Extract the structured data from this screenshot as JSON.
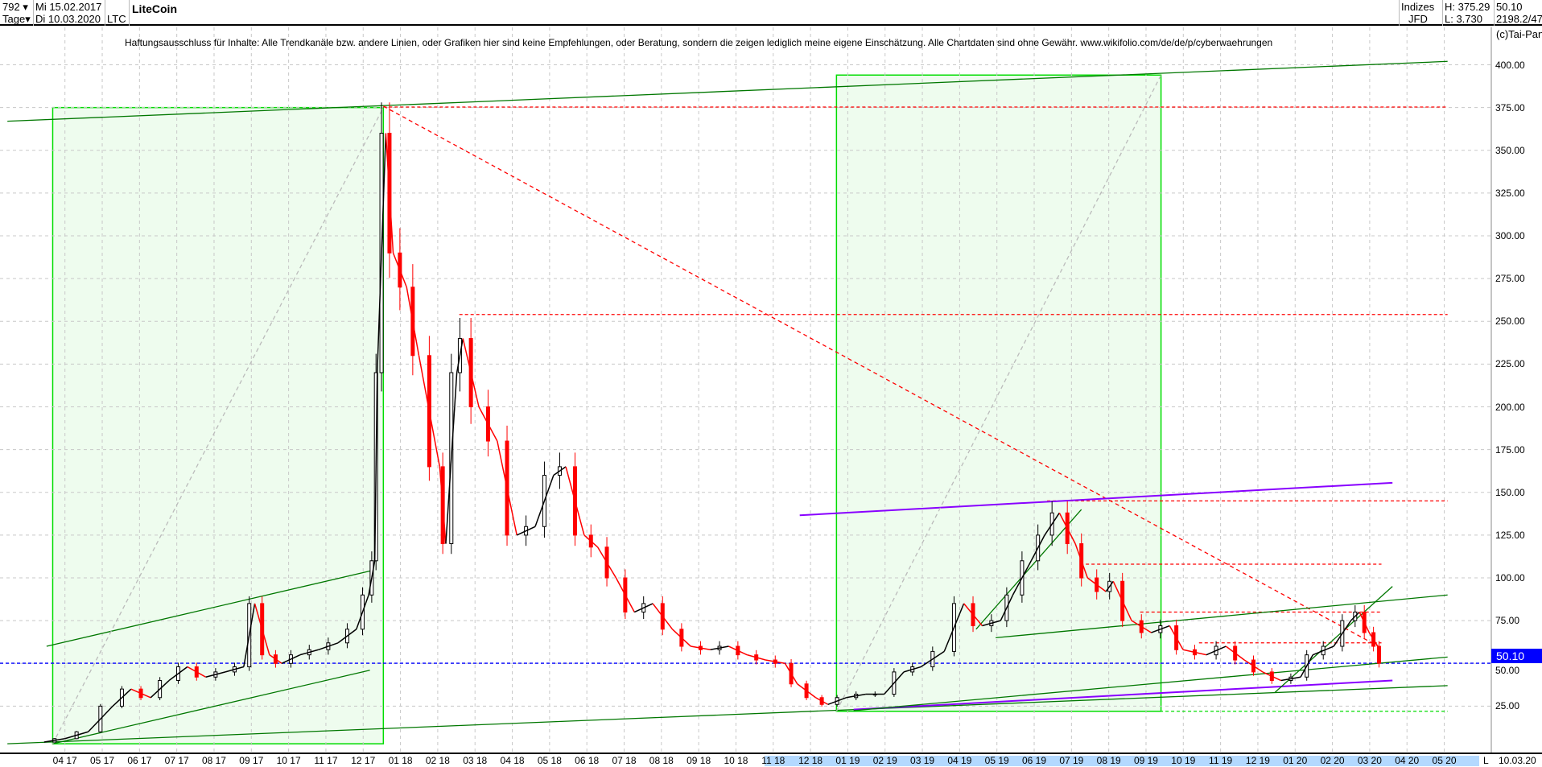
{
  "header": {
    "count": "792",
    "period": "Tage",
    "date_from": "Mi 15.02.2017",
    "date_to": "Di 10.03.2020",
    "symbol": "LTC",
    "title": "LiteCoin",
    "market": "Indizes",
    "exchange": "JFD",
    "high": "H: 375.29",
    "low": "L: 3.730",
    "last": "50.10",
    "extra": "2198.2/47",
    "copyright": "(c)Tai-Pan"
  },
  "disclaimer": "Haftungsausschluss für Inhalte: Alle Trendkanäle bzw. andere Linien, oder Grafiken hier sind keine Empfehlungen, oder Beratung, sondern die zeigen lediglich meine eigene Einschätzung. Alle Chartdaten sind ohne Gewähr.  www.wikifolio.com/de/de/p/cyberwaehrungen",
  "footer": {
    "scale_mode": "L",
    "end_date": "10.03.20"
  },
  "colors": {
    "up": "#000000",
    "down": "#ff0000",
    "box": "#00dd00",
    "box_fill": "#eefcee",
    "trend": "#007700",
    "resistance": "#ff0000",
    "purple": "#8800ff",
    "current": "#0000ff"
  },
  "chart_data": {
    "type": "candlestick",
    "title": "LiteCoin",
    "ylim": [
      3.73,
      410
    ],
    "yticks": [
      "25.00",
      "50.00",
      "75.00",
      "100.00",
      "125.00",
      "150.00",
      "175.00",
      "200.00",
      "225.00",
      "250.00",
      "275.00",
      "300.00",
      "325.00",
      "350.00",
      "375.00",
      "400.00"
    ],
    "xticks": [
      "04 17",
      "05 17",
      "06 17",
      "07 17",
      "08 17",
      "09 17",
      "10 17",
      "11 17",
      "12 17",
      "01 18",
      "02 18",
      "03 18",
      "04 18",
      "05 18",
      "06 18",
      "07 18",
      "08 18",
      "09 18",
      "10 18",
      "11 18",
      "12 18",
      "01 19",
      "02 19",
      "03 19",
      "04 19",
      "05 19",
      "06 19",
      "07 19",
      "08 19",
      "09 19",
      "10 19",
      "11 19",
      "12 19",
      "01 20",
      "02 20",
      "03 20",
      "04 20",
      "05 20"
    ],
    "current_value": "50.10",
    "grid": true,
    "prices": [
      [
        "2017-03-15",
        4
      ],
      [
        "2017-04-01",
        6
      ],
      [
        "2017-04-20",
        10
      ],
      [
        "2017-05-10",
        25
      ],
      [
        "2017-05-25",
        35
      ],
      [
        "2017-06-10",
        30
      ],
      [
        "2017-06-25",
        40
      ],
      [
        "2017-07-10",
        48
      ],
      [
        "2017-07-25",
        42
      ],
      [
        "2017-08-10",
        45
      ],
      [
        "2017-08-25",
        48
      ],
      [
        "2017-09-03",
        85
      ],
      [
        "2017-09-15",
        55
      ],
      [
        "2017-09-25",
        50
      ],
      [
        "2017-10-10",
        55
      ],
      [
        "2017-10-25",
        58
      ],
      [
        "2017-11-10",
        62
      ],
      [
        "2017-11-25",
        70
      ],
      [
        "2017-12-05",
        90
      ],
      [
        "2017-12-10",
        110
      ],
      [
        "2017-12-12",
        220
      ],
      [
        "2017-12-19",
        360
      ],
      [
        "2017-12-25",
        290
      ],
      [
        "2018-01-05",
        270
      ],
      [
        "2018-01-15",
        230
      ],
      [
        "2018-02-01",
        165
      ],
      [
        "2018-02-06",
        120
      ],
      [
        "2018-02-15",
        220
      ],
      [
        "2018-02-20",
        240
      ],
      [
        "2018-03-05",
        200
      ],
      [
        "2018-03-20",
        180
      ],
      [
        "2018-04-05",
        125
      ],
      [
        "2018-04-20",
        130
      ],
      [
        "2018-05-05",
        160
      ],
      [
        "2018-05-15",
        165
      ],
      [
        "2018-05-30",
        125
      ],
      [
        "2018-06-10",
        118
      ],
      [
        "2018-06-25",
        100
      ],
      [
        "2018-07-10",
        80
      ],
      [
        "2018-07-25",
        85
      ],
      [
        "2018-08-10",
        70
      ],
      [
        "2018-08-25",
        60
      ],
      [
        "2018-09-10",
        58
      ],
      [
        "2018-09-25",
        60
      ],
      [
        "2018-10-10",
        55
      ],
      [
        "2018-10-25",
        52
      ],
      [
        "2018-11-10",
        50
      ],
      [
        "2018-11-20",
        38
      ],
      [
        "2018-12-05",
        30
      ],
      [
        "2018-12-15",
        26
      ],
      [
        "2018-12-30",
        30
      ],
      [
        "2019-01-15",
        32
      ],
      [
        "2019-01-30",
        32
      ],
      [
        "2019-02-15",
        45
      ],
      [
        "2019-03-01",
        48
      ],
      [
        "2019-03-20",
        57
      ],
      [
        "2019-04-05",
        85
      ],
      [
        "2019-04-20",
        72
      ],
      [
        "2019-05-05",
        75
      ],
      [
        "2019-05-15",
        90
      ],
      [
        "2019-05-30",
        110
      ],
      [
        "2019-06-10",
        125
      ],
      [
        "2019-06-22",
        138
      ],
      [
        "2019-07-05",
        120
      ],
      [
        "2019-07-15",
        100
      ],
      [
        "2019-07-30",
        92
      ],
      [
        "2019-08-05",
        98
      ],
      [
        "2019-08-20",
        75
      ],
      [
        "2019-09-05",
        68
      ],
      [
        "2019-09-20",
        72
      ],
      [
        "2019-10-01",
        58
      ],
      [
        "2019-10-20",
        55
      ],
      [
        "2019-11-05",
        60
      ],
      [
        "2019-11-20",
        52
      ],
      [
        "2019-12-05",
        45
      ],
      [
        "2019-12-20",
        40
      ],
      [
        "2020-01-05",
        42
      ],
      [
        "2020-01-15",
        55
      ],
      [
        "2020-02-01",
        60
      ],
      [
        "2020-02-15",
        75
      ],
      [
        "2020-02-22",
        80
      ],
      [
        "2020-03-01",
        68
      ],
      [
        "2020-03-08",
        60
      ],
      [
        "2020-03-10",
        50.1
      ]
    ],
    "boxes": [
      {
        "from": "2017-03-22",
        "to": "2017-12-17",
        "low": 3,
        "high": 375
      },
      {
        "from": "2018-12-22",
        "to": "2019-09-13",
        "low": 22,
        "high": 394
      }
    ],
    "levels": [
      {
        "value": 375.29,
        "from": "2017-12-17",
        "to": "2020-05-04",
        "color": "resistance"
      },
      {
        "value": 254,
        "from": "2018-02-17",
        "to": "2020-05-04",
        "color": "resistance"
      },
      {
        "value": 145,
        "from": "2019-06-12",
        "to": "2020-05-04",
        "color": "resistance"
      },
      {
        "value": 108,
        "from": "2019-07-09",
        "to": "2020-03-11",
        "color": "resistance"
      },
      {
        "value": 80,
        "from": "2019-08-27",
        "to": "2020-03-11",
        "color": "resistance"
      },
      {
        "value": 62,
        "from": "2019-10-14",
        "to": "2020-03-11",
        "color": "resistance"
      },
      {
        "value": 22,
        "from": "2019-09-12",
        "to": "2020-05-04",
        "color": "box"
      }
    ],
    "trendlines": [
      {
        "a": [
          "2017-02-13",
          367
        ],
        "b": [
          "2020-05-04",
          402
        ],
        "color": "trend"
      },
      {
        "a": [
          "2017-02-13",
          3
        ],
        "b": [
          "2020-05-04",
          37
        ],
        "color": "trend"
      },
      {
        "a": [
          "2017-03-17",
          60
        ],
        "b": [
          "2017-12-06",
          104
        ],
        "color": "trend"
      },
      {
        "a": [
          "2017-03-22",
          3
        ],
        "b": [
          "2017-12-06",
          46
        ],
        "color": "trend"
      },
      {
        "a": [
          "2017-12-17",
          375.8
        ],
        "b": [
          "2020-03-11",
          59
        ],
        "color": "resistance",
        "dash": true
      },
      {
        "a": [
          "2018-11-22",
          136.6
        ],
        "b": [
          "2020-03-20",
          155.6
        ],
        "color": "purple"
      },
      {
        "a": [
          "2019-01-05",
          23
        ],
        "b": [
          "2020-03-20",
          40
        ],
        "color": "purple"
      },
      {
        "a": [
          "2019-01-05",
          22.4
        ],
        "b": [
          "2020-05-04",
          53.7
        ],
        "color": "trend"
      },
      {
        "a": [
          "2019-04-15",
          70
        ],
        "b": [
          "2019-07-10",
          140
        ],
        "color": "trend"
      },
      {
        "a": [
          "2019-05-01",
          65
        ],
        "b": [
          "2020-05-04",
          90
        ],
        "color": "trend"
      },
      {
        "a": [
          "2019-12-15",
          33
        ],
        "b": [
          "2020-03-20",
          95
        ],
        "color": "trend"
      },
      {
        "a": [
          "2017-03-22",
          3
        ],
        "b": [
          "2017-12-17",
          375
        ],
        "color": "gray",
        "dash": true
      },
      {
        "a": [
          "2018-12-22",
          22
        ],
        "b": [
          "2019-09-13",
          394
        ],
        "color": "gray",
        "dash": true
      }
    ]
  }
}
